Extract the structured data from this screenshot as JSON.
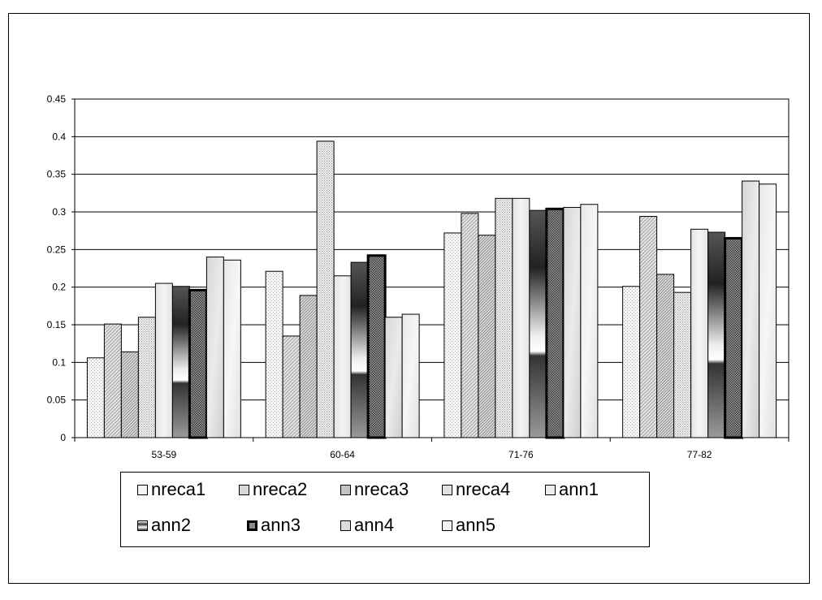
{
  "chart_data": {
    "type": "bar",
    "title": "",
    "xlabel": "",
    "ylabel": "",
    "ylim": [
      0,
      0.45
    ],
    "yticks": [
      "0",
      "0.05",
      "0.1",
      "0.15",
      "0.2",
      "0.25",
      "0.3",
      "0.35",
      "0.4",
      "0.45"
    ],
    "categories": [
      "53-59",
      "60-64",
      "71-76",
      "77-82"
    ],
    "grid": "horizontal",
    "legend_position": "bottom",
    "series": [
      {
        "name": "nreca1",
        "values": [
          0.106,
          0.221,
          0.272,
          0.201
        ]
      },
      {
        "name": "nreca2",
        "values": [
          0.151,
          0.135,
          0.298,
          0.294
        ]
      },
      {
        "name": "nreca3",
        "values": [
          0.114,
          0.189,
          0.269,
          0.217
        ]
      },
      {
        "name": "nreca4",
        "values": [
          0.16,
          0.394,
          0.318,
          0.193
        ]
      },
      {
        "name": "ann1",
        "values": [
          0.205,
          0.215,
          0.318,
          0.277
        ]
      },
      {
        "name": "ann2",
        "values": [
          0.201,
          0.233,
          0.302,
          0.273
        ]
      },
      {
        "name": "ann3",
        "values": [
          0.196,
          0.242,
          0.304,
          0.265
        ]
      },
      {
        "name": "ann4",
        "values": [
          0.24,
          0.16,
          0.306,
          0.341
        ]
      },
      {
        "name": "ann5",
        "values": [
          0.236,
          0.164,
          0.31,
          0.337
        ]
      }
    ]
  }
}
